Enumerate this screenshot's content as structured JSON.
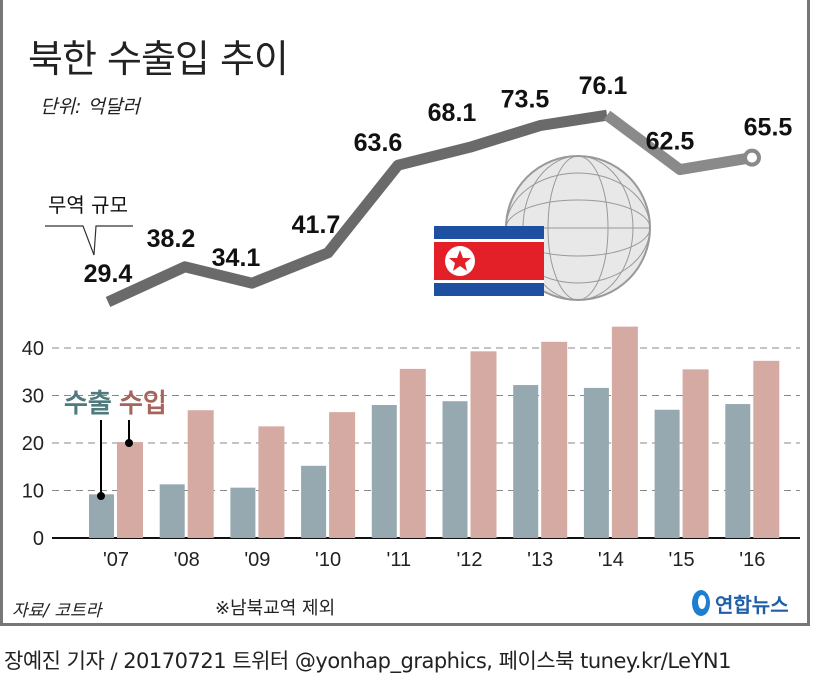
{
  "title": "북한 수출입 추이",
  "unit": "단위: 억달러",
  "source": "자료/ 코트라",
  "note": "※남북교역 제외",
  "logo": "연합뉴스",
  "credit": "장예진 기자 / 20170721 트위터 @yonhap_graphics, 페이스북 tuney.kr/LeYN1",
  "colors": {
    "export": "#97a9b0",
    "import": "#d4aaa3",
    "export_label": "#4f7a7e",
    "import_label": "#a5645c",
    "line": "#6a6a6a",
    "line_recent": "#8a8a8a"
  },
  "chart_data": [
    {
      "type": "line",
      "series_label": "무역 규모",
      "categories": [
        "'07",
        "'08",
        "'09",
        "'10",
        "'11",
        "'12",
        "'13",
        "'14",
        "'15",
        "'16"
      ],
      "values": [
        29.4,
        38.2,
        34.1,
        41.7,
        63.6,
        68.1,
        73.5,
        76.1,
        62.5,
        65.5
      ],
      "labels": [
        "29.4",
        "38.2",
        "34.1",
        "41.7",
        "63.6",
        "68.1",
        "73.5",
        "76.1",
        "62.5",
        "65.5"
      ]
    },
    {
      "type": "bar",
      "categories": [
        "'07",
        "'08",
        "'09",
        "'10",
        "'11",
        "'12",
        "'13",
        "'14",
        "'15",
        "'16"
      ],
      "series": [
        {
          "name": "수출",
          "values": [
            9.2,
            11.3,
            10.6,
            15.2,
            28.0,
            28.8,
            32.2,
            31.6,
            27.0,
            28.2
          ]
        },
        {
          "name": "수입",
          "values": [
            20.2,
            26.9,
            23.5,
            26.5,
            35.6,
            39.3,
            41.3,
            44.5,
            35.5,
            37.3
          ]
        }
      ],
      "yticks": [
        "0",
        "10",
        "20",
        "30",
        "40"
      ],
      "ylim": [
        0,
        40
      ],
      "grid": true
    }
  ]
}
